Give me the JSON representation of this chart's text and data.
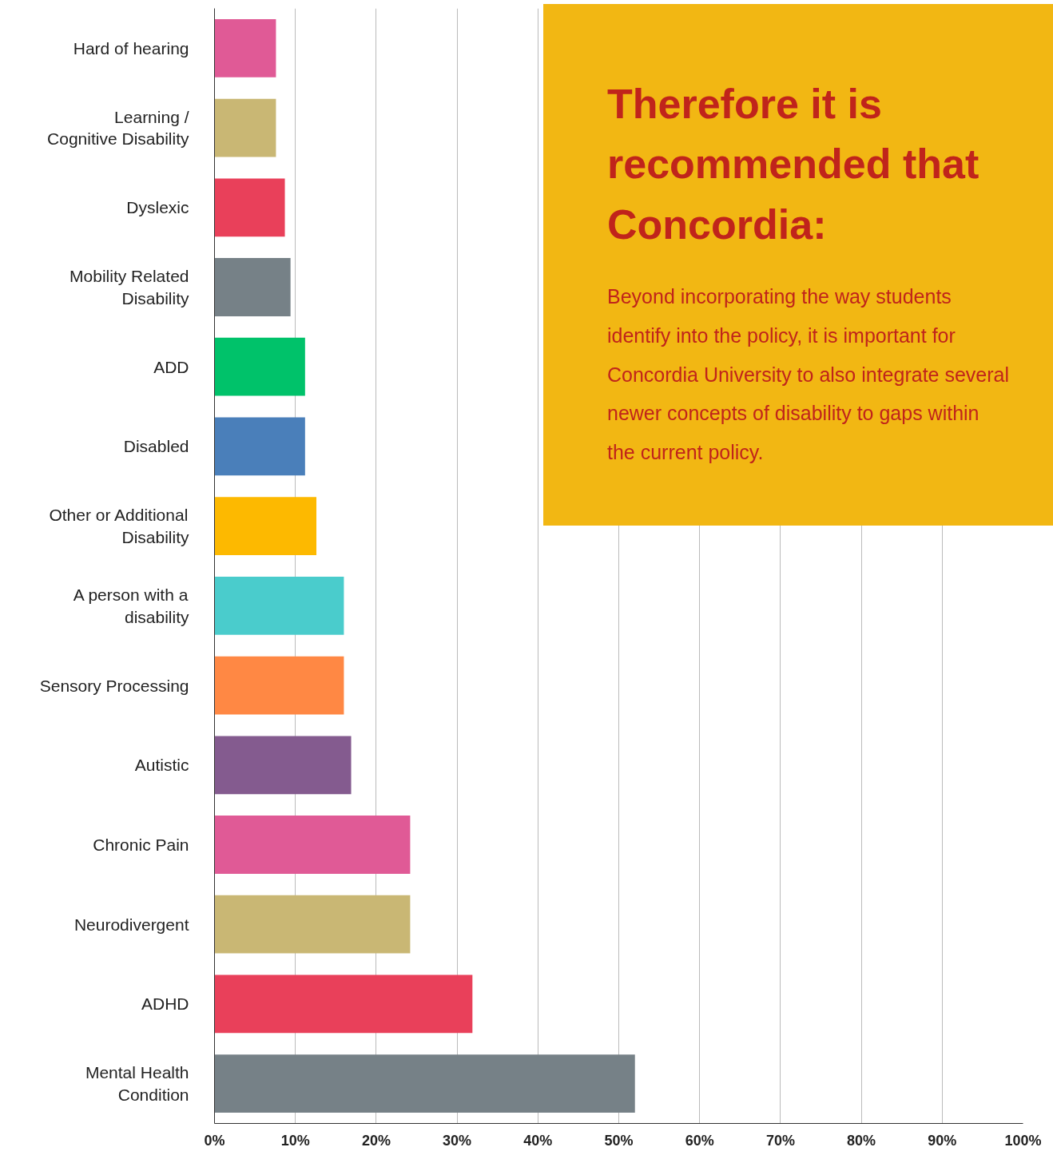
{
  "chart_data": {
    "type": "bar",
    "orientation": "horizontal",
    "categories": [
      "Hard of hearing",
      "Learning /\nCognitive Disability",
      "Dyslexic",
      "Mobility Related\nDisability",
      "ADD",
      "Disabled",
      "Other or Additional\nDisability",
      "A person with a\ndisability",
      "Sensory Processing",
      "Autistic",
      "Chronic Pain",
      "Neurodivergent",
      "ADHD",
      "Mental Health\nCondition"
    ],
    "values": [
      7.6,
      7.6,
      8.7,
      9.4,
      11.2,
      11.2,
      12.6,
      16.0,
      16.0,
      16.9,
      24.2,
      24.2,
      31.9,
      52.0
    ],
    "colors": [
      "#e05a96",
      "#c9b774",
      "#e9405a",
      "#768187",
      "#00c26a",
      "#4a7fba",
      "#fdb900",
      "#4acccc",
      "#ff8844",
      "#845b8f",
      "#e05a96",
      "#c9b774",
      "#e9405a",
      "#768187"
    ],
    "xlim": [
      0,
      100
    ],
    "xticks": [
      {
        "value": 0,
        "label": "0%"
      },
      {
        "value": 10,
        "label": "10%"
      },
      {
        "value": 20,
        "label": "20%"
      },
      {
        "value": 30,
        "label": "30%"
      },
      {
        "value": 40,
        "label": "40%"
      },
      {
        "value": 50,
        "label": "50%"
      },
      {
        "value": 60,
        "label": "60%"
      },
      {
        "value": 70,
        "label": "70%"
      },
      {
        "value": 80,
        "label": "80%"
      },
      {
        "value": 90,
        "label": "90%"
      },
      {
        "value": 100,
        "label": "100%"
      }
    ],
    "grid": "x",
    "annotations": [
      "Therefore it is recommended that Concordia:",
      "Beyond incorporating the way students identify into the policy, it is important for Concordia University to also integrate several newer concepts of disability to gaps within the current policy."
    ]
  }
}
